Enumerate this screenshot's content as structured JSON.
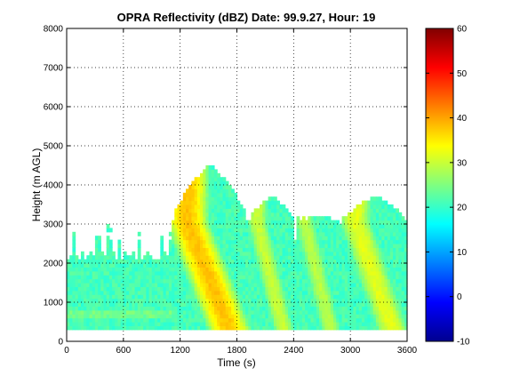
{
  "chart_data": {
    "type": "heatmap",
    "title": "OPRA Reflectivity (dBZ)  Date: 99.9.27, Hour: 19",
    "xlabel": "Time (s)",
    "ylabel": "Height (m AGL)",
    "xlim": [
      0,
      3600
    ],
    "ylim": [
      0,
      8000
    ],
    "x_ticks": [
      0,
      600,
      1200,
      1800,
      2400,
      3000,
      3600
    ],
    "y_ticks": [
      0,
      1000,
      2000,
      3000,
      4000,
      5000,
      6000,
      7000,
      8000
    ],
    "grid": true,
    "colorbar": {
      "colormap": "jet",
      "range": [
        -10,
        60
      ],
      "ticks": [
        -10,
        0,
        10,
        20,
        30,
        40,
        50,
        60
      ]
    },
    "echo_features": [
      {
        "feature": "low-level layer",
        "t_start": 0,
        "t_end": 3600,
        "z_bottom": 300,
        "z_top": 2000,
        "dbz": 21
      },
      {
        "feature": "cell 1 (strongest)",
        "t_start": 1100,
        "t_end": 1900,
        "z_top": 4500,
        "dbz_max": 38
      },
      {
        "feature": "cell 2",
        "t_start": 1900,
        "t_end": 2400,
        "z_top": 3700,
        "dbz_max": 30
      },
      {
        "feature": "cell 3",
        "t_start": 2400,
        "t_end": 2900,
        "z_top": 3200,
        "dbz_max": 29
      },
      {
        "feature": "cell 4",
        "t_start": 2900,
        "t_end": 3600,
        "z_top": 3700,
        "dbz_max": 32
      }
    ]
  }
}
